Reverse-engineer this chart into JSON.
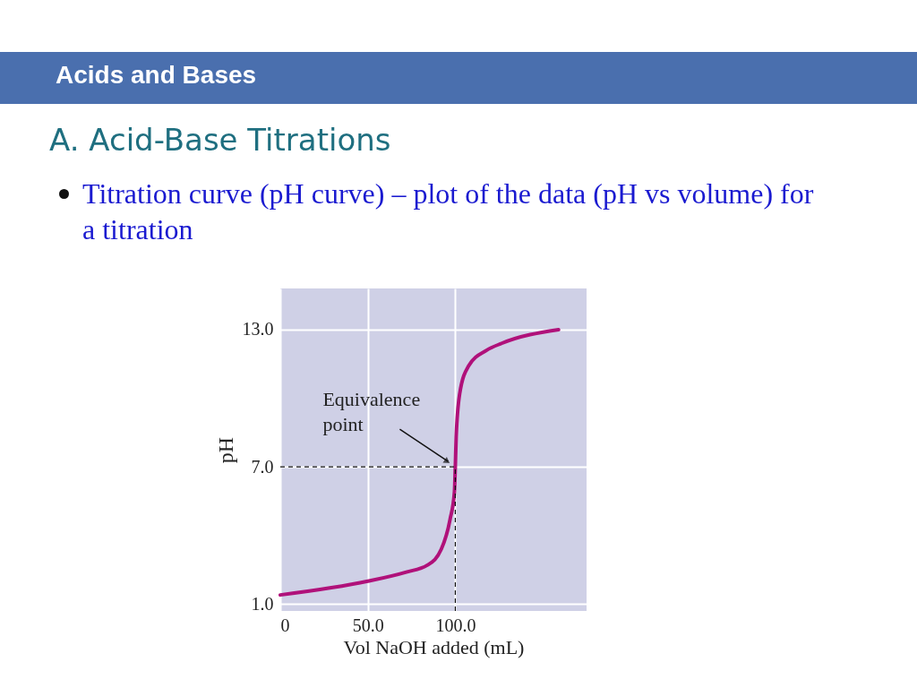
{
  "chart_data": {
    "type": "line",
    "title": "A. Acid-Base Titrations",
    "subtitle": "Titration curve (pH curve) – plot of the data (pH vs volume) for a titration",
    "annotations": [
      "Acids and Bases",
      {
        "text": "Equivalence point",
        "x": 100,
        "y": 7
      }
    ],
    "xlabel": "Vol NaOH added (mL)",
    "ylabel": "pH",
    "x": [
      0,
      50,
      72,
      84,
      92,
      97,
      99.5,
      100,
      100.5,
      102.5,
      107.5,
      118,
      126.5,
      159
    ],
    "series": [
      {
        "color": "#b0117a",
        "values": [
          1.4,
          2.0,
          2.4,
          2.7,
          3.4,
          4.7,
          5.9,
          7.0,
          8.3,
          10.2,
          11.4,
          12.1,
          12.4,
          13.0
        ]
      }
    ],
    "xlim": [
      0,
      175
    ],
    "ylim": [
      0.7,
      14.8
    ],
    "xticks": [
      0,
      {
        "value": 50,
        "label": "50.0"
      },
      {
        "value": 100,
        "label": "100.0"
      }
    ],
    "yticks": [
      {
        "value": 1,
        "label": "1.0"
      },
      {
        "value": 7,
        "label": "7.0"
      },
      {
        "value": 13,
        "label": "13.0"
      }
    ],
    "ref_lines": [
      {
        "axis": "y",
        "value": 7,
        "line_style": "dashed"
      },
      {
        "axis": "x",
        "value": 100,
        "line_style": "dashed"
      }
    ],
    "grid": true,
    "line_style": "solid",
    "marker": "none"
  }
}
